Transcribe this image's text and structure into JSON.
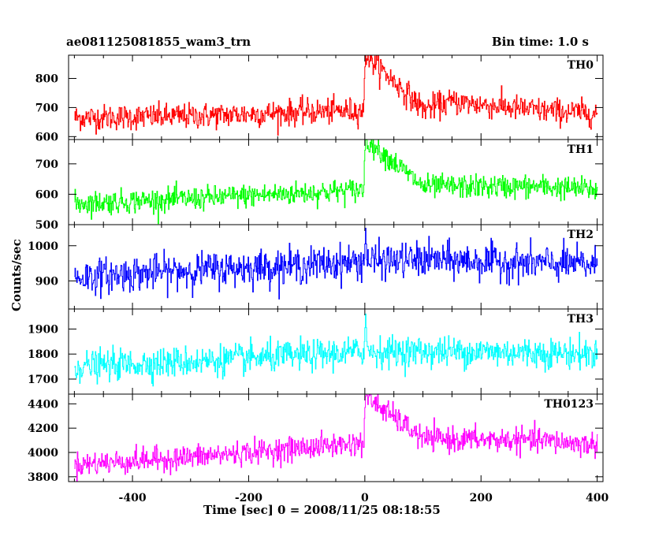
{
  "chart_data": {
    "type": "line",
    "title": "ae081125081855_wam3_trn",
    "subtitle": "Bin time: 1.0 s",
    "xlabel": "Time [sec] 0 = 2008/11/25 08:18:55",
    "ylabel": "Counts/sec",
    "xlim": [
      -510,
      410
    ],
    "x_range_data": [
      -500,
      400
    ],
    "x_ticks": [
      -400,
      -200,
      0,
      200,
      400
    ],
    "panels": [
      {
        "name": "TH0",
        "color": "#ff0000",
        "ylim": [
          590,
          880
        ],
        "y_ticks": [
          600,
          700,
          800
        ],
        "baseline_start": 665,
        "baseline_end": 690,
        "noise": 40,
        "burst_peak": 880,
        "approx_series": [
          [
            -500,
            665
          ],
          [
            -300,
            670
          ],
          [
            -100,
            685
          ],
          [
            0,
            690
          ],
          [
            2,
            880
          ],
          [
            100,
            695
          ],
          [
            150,
            720
          ],
          [
            300,
            690
          ],
          [
            400,
            680
          ]
        ]
      },
      {
        "name": "TH1",
        "color": "#00ff00",
        "ylim": [
          500,
          780
        ],
        "y_ticks": [
          500,
          600,
          700
        ],
        "baseline_start": 570,
        "baseline_end": 620,
        "noise": 35,
        "burst_peak": 780,
        "approx_series": [
          [
            -500,
            570
          ],
          [
            -300,
            585
          ],
          [
            -100,
            605
          ],
          [
            0,
            615
          ],
          [
            2,
            780
          ],
          [
            100,
            625
          ],
          [
            300,
            625
          ],
          [
            400,
            615
          ]
        ]
      },
      {
        "name": "TH2",
        "color": "#0000ff",
        "ylim": [
          820,
          1060
        ],
        "y_ticks": [
          900,
          1000
        ],
        "baseline_start": 910,
        "baseline_end": 955,
        "noise": 45,
        "burst_peak": 1050,
        "approx_series": [
          [
            -500,
            910
          ],
          [
            -300,
            930
          ],
          [
            -100,
            945
          ],
          [
            0,
            955
          ],
          [
            100,
            960
          ],
          [
            300,
            950
          ],
          [
            400,
            945
          ]
        ]
      },
      {
        "name": "TH3",
        "color": "#00ffff",
        "ylim": [
          1640,
          1980
        ],
        "y_ticks": [
          1700,
          1800,
          1900
        ],
        "baseline_start": 1750,
        "baseline_end": 1810,
        "noise": 55,
        "burst_peak": 1960,
        "approx_series": [
          [
            -500,
            1750
          ],
          [
            -300,
            1770
          ],
          [
            -100,
            1795
          ],
          [
            0,
            1810
          ],
          [
            200,
            1810
          ],
          [
            400,
            1800
          ]
        ]
      },
      {
        "name": "TH0123",
        "color": "#ff00ff",
        "ylim": [
          3760,
          4480
        ],
        "y_ticks": [
          3800,
          4000,
          4200,
          4400
        ],
        "baseline_start": 3900,
        "baseline_end": 4080,
        "noise": 90,
        "burst_peak": 4460,
        "approx_series": [
          [
            -500,
            3900
          ],
          [
            -300,
            3960
          ],
          [
            -100,
            4040
          ],
          [
            0,
            4080
          ],
          [
            2,
            4460
          ],
          [
            100,
            4110
          ],
          [
            300,
            4100
          ],
          [
            400,
            4060
          ]
        ]
      }
    ]
  }
}
